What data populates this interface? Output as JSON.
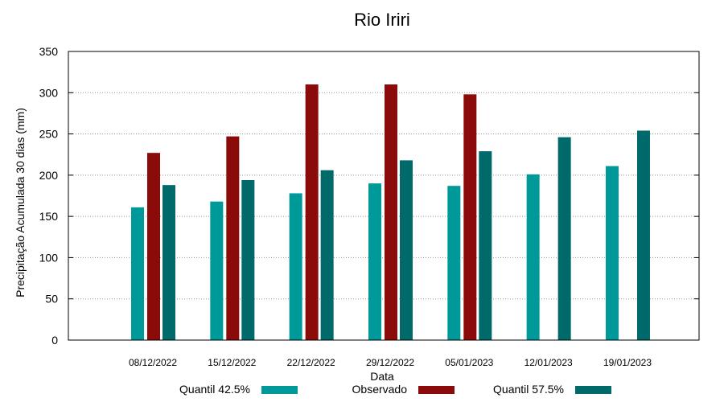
{
  "chart_data": {
    "type": "bar",
    "title": "Rio Iriri",
    "xlabel": "Data",
    "ylabel": "Precipitação Acumulada 30 dias (mm)",
    "ylim": [
      0,
      350
    ],
    "yticks": [
      0,
      50,
      100,
      150,
      200,
      250,
      300,
      350
    ],
    "grid": true,
    "legend_position": "bottom",
    "categories": [
      "08/12/2022",
      "15/12/2022",
      "22/12/2022",
      "29/12/2022",
      "05/01/2023",
      "12/01/2023",
      "19/01/2023"
    ],
    "series": [
      {
        "name": "Quantil 42.5%",
        "color": "#009999",
        "values": [
          161,
          168,
          178,
          190,
          187,
          201,
          211
        ]
      },
      {
        "name": "Observado",
        "color": "#8b0a0a",
        "values": [
          227,
          247,
          310,
          310,
          298,
          null,
          null
        ]
      },
      {
        "name": "Quantil 57.5%",
        "color": "#006a6a",
        "values": [
          188,
          194,
          206,
          218,
          229,
          246,
          254
        ]
      }
    ]
  }
}
